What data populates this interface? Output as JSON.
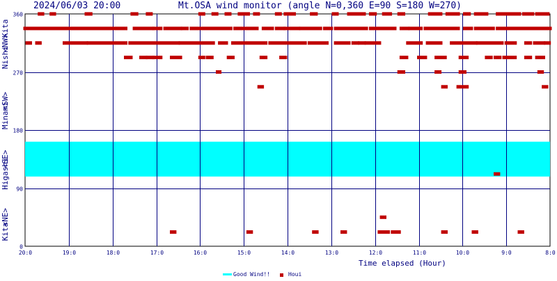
{
  "header": {
    "timestamp": "2024/06/03 20:00",
    "title": "Mt.OSA wind monitor (angle N=0,360 E=90 S=180 W=270)"
  },
  "chart_data": {
    "type": "scatter",
    "title": "Mt.OSA wind monitor (angle N=0,360 E=90 S=180 W=270)",
    "xlabel": "Time elapsed (Hour)",
    "ylabel": "Kita <NE> Higashi <SE> Minami <SW> Nishi <NW> Kita",
    "y_axis_words": [
      {
        "text": "Kita",
        "at": 22.5
      },
      {
        "text": "<NE>",
        "at": 45
      },
      {
        "text": "Higashi",
        "at": 112.5
      },
      {
        "text": "<SE>",
        "at": 135
      },
      {
        "text": "Minami",
        "at": 202.5
      },
      {
        "text": "<SW>",
        "at": 225
      },
      {
        "text": "Nishi",
        "at": 292.5
      },
      {
        "text": "<NW>",
        "at": 315
      },
      {
        "text": "Kita",
        "at": 337.5
      }
    ],
    "ylim": [
      0,
      360
    ],
    "y_ticks": [
      0,
      90,
      180,
      270,
      360
    ],
    "xlim": [
      0,
      12
    ],
    "x_ticks": [
      0,
      1,
      2,
      3,
      4,
      5,
      6,
      7,
      8,
      9,
      10,
      11,
      12
    ],
    "x_tick_labels": [
      "20:0",
      "19:0",
      "18:0",
      "17:0",
      "16:0",
      "15:0",
      "14:0",
      "13:0",
      "12:0",
      "11:0",
      "10:0",
      "9:0",
      "8:0"
    ],
    "grid": true,
    "legend_position": "bottom-center",
    "colors": {
      "band": "#00ffff",
      "houi": "#c00000",
      "grid": "#000080",
      "axis_text": "#000080",
      "title_text": "#000080"
    },
    "band": {
      "name": "Good Wind!!",
      "y_from": 108,
      "y_to": 162
    },
    "series": [
      {
        "name": "Houi",
        "runs": [
          {
            "y": 337.5,
            "x_ranges": [
              [
                0,
                2.3
              ],
              [
                2.5,
                2.9
              ],
              [
                2.95,
                3.1
              ],
              [
                3.2,
                3.55
              ],
              [
                3.6,
                3.7
              ],
              [
                3.8,
                4.7
              ],
              [
                4.8,
                5.3
              ],
              [
                5.45,
                5.65
              ],
              [
                5.75,
                5.9
              ],
              [
                5.95,
                6.25
              ],
              [
                6.3,
                6.75
              ],
              [
                6.85,
                7.0
              ],
              [
                7.1,
                7.8
              ],
              [
                7.9,
                8.45
              ],
              [
                8.6,
                8.75
              ],
              [
                8.8,
                9.05
              ],
              [
                9.15,
                9.9
              ],
              [
                10.05,
                10.2
              ],
              [
                10.3,
                10.7
              ],
              [
                10.8,
                12
              ]
            ]
          },
          {
            "y": 315,
            "x_ranges": [
              [
                0.05,
                0.12
              ],
              [
                0.27,
                0.34
              ],
              [
                0.9,
                1.4
              ],
              [
                1.45,
                2.3
              ],
              [
                2.4,
                3.5
              ],
              [
                3.55,
                4.3
              ],
              [
                4.45,
                4.6
              ],
              [
                4.75,
                5.5
              ],
              [
                5.6,
                6.4
              ],
              [
                6.5,
                6.9
              ],
              [
                7.1,
                7.4
              ],
              [
                7.5,
                7.6
              ],
              [
                7.65,
                7.75
              ],
              [
                7.8,
                8.1
              ],
              [
                8.75,
                9.05
              ],
              [
                9.2,
                9.5
              ],
              [
                9.75,
                10.3
              ],
              [
                10.35,
                10.9
              ],
              [
                11.0,
                11.2
              ],
              [
                11.45,
                11.55
              ],
              [
                11.65,
                11.85
              ],
              [
                11.9,
                11.98
              ]
            ]
          },
          {
            "y": 292.5,
            "x_ranges": [
              [
                2.3,
                2.42
              ],
              [
                2.65,
                2.76
              ],
              [
                2.8,
                2.9
              ],
              [
                2.95,
                3.1
              ],
              [
                3.35,
                3.55
              ],
              [
                4.0,
                4.08
              ],
              [
                4.17,
                4.27
              ],
              [
                4.65,
                4.75
              ],
              [
                5.4,
                5.5
              ],
              [
                5.85,
                5.95
              ],
              [
                8.6,
                8.72
              ],
              [
                9.0,
                9.15
              ],
              [
                9.4,
                9.6
              ],
              [
                9.95,
                10.1
              ],
              [
                10.55,
                10.65
              ],
              [
                10.75,
                10.85
              ],
              [
                10.95,
                11.2
              ],
              [
                11.45,
                11.55
              ],
              [
                11.7,
                11.85
              ]
            ]
          },
          {
            "y": 360,
            "x_ranges": [
              [
                0.33,
                0.4
              ],
              [
                0.6,
                0.67
              ],
              [
                1.4,
                1.5
              ],
              [
                2.45,
                2.55
              ],
              [
                2.8,
                2.88
              ],
              [
                4.0,
                4.08
              ],
              [
                4.3,
                4.38
              ],
              [
                4.6,
                4.68
              ],
              [
                4.9,
                5.1
              ],
              [
                5.25,
                5.33
              ],
              [
                5.75,
                5.83
              ],
              [
                5.95,
                6.15
              ],
              [
                6.55,
                6.65
              ],
              [
                7.05,
                7.13
              ],
              [
                7.4,
                7.6
              ],
              [
                7.65,
                7.75
              ],
              [
                7.9,
                8.0
              ],
              [
                8.2,
                8.35
              ],
              [
                8.55,
                8.65
              ],
              [
                9.25,
                9.5
              ],
              [
                9.65,
                9.75
              ],
              [
                9.8,
                9.9
              ],
              [
                10.05,
                10.15
              ],
              [
                10.3,
                10.4
              ],
              [
                10.45,
                10.55
              ],
              [
                10.8,
                11.1
              ],
              [
                11.15,
                11.3
              ],
              [
                11.4,
                11.48
              ],
              [
                11.5,
                11.6
              ],
              [
                11.7,
                11.8
              ],
              [
                11.85,
                11.95
              ]
            ]
          },
          {
            "y": 270,
            "x_ranges": [
              [
                4.4,
                4.45
              ],
              [
                8.55,
                8.65
              ],
              [
                9.4,
                9.48
              ],
              [
                9.95,
                10.05
              ],
              [
                11.75,
                11.82
              ]
            ]
          },
          {
            "y": 247,
            "x_ranges": [
              [
                5.35,
                5.42
              ],
              [
                9.55,
                9.62
              ],
              [
                9.9,
                10.1
              ],
              [
                11.85,
                11.92
              ]
            ]
          },
          {
            "y": 112,
            "x_ranges": [
              [
                10.75,
                10.82
              ]
            ]
          },
          {
            "y": 45,
            "x_ranges": [
              [
                8.15,
                8.22
              ]
            ]
          },
          {
            "y": 22,
            "x_ranges": [
              [
                3.35,
                3.42
              ],
              [
                5.1,
                5.17
              ],
              [
                6.6,
                6.67
              ],
              [
                7.25,
                7.32
              ],
              [
                8.1,
                8.3
              ],
              [
                8.4,
                8.55
              ],
              [
                9.55,
                9.62
              ],
              [
                10.25,
                10.32
              ],
              [
                11.3,
                11.37
              ]
            ]
          }
        ]
      }
    ]
  },
  "legend": {
    "items": [
      {
        "label": "Good Wind!!",
        "color": "#00ffff",
        "shape": "line"
      },
      {
        "label": "Houi",
        "color": "#c00000",
        "shape": "square"
      }
    ]
  }
}
